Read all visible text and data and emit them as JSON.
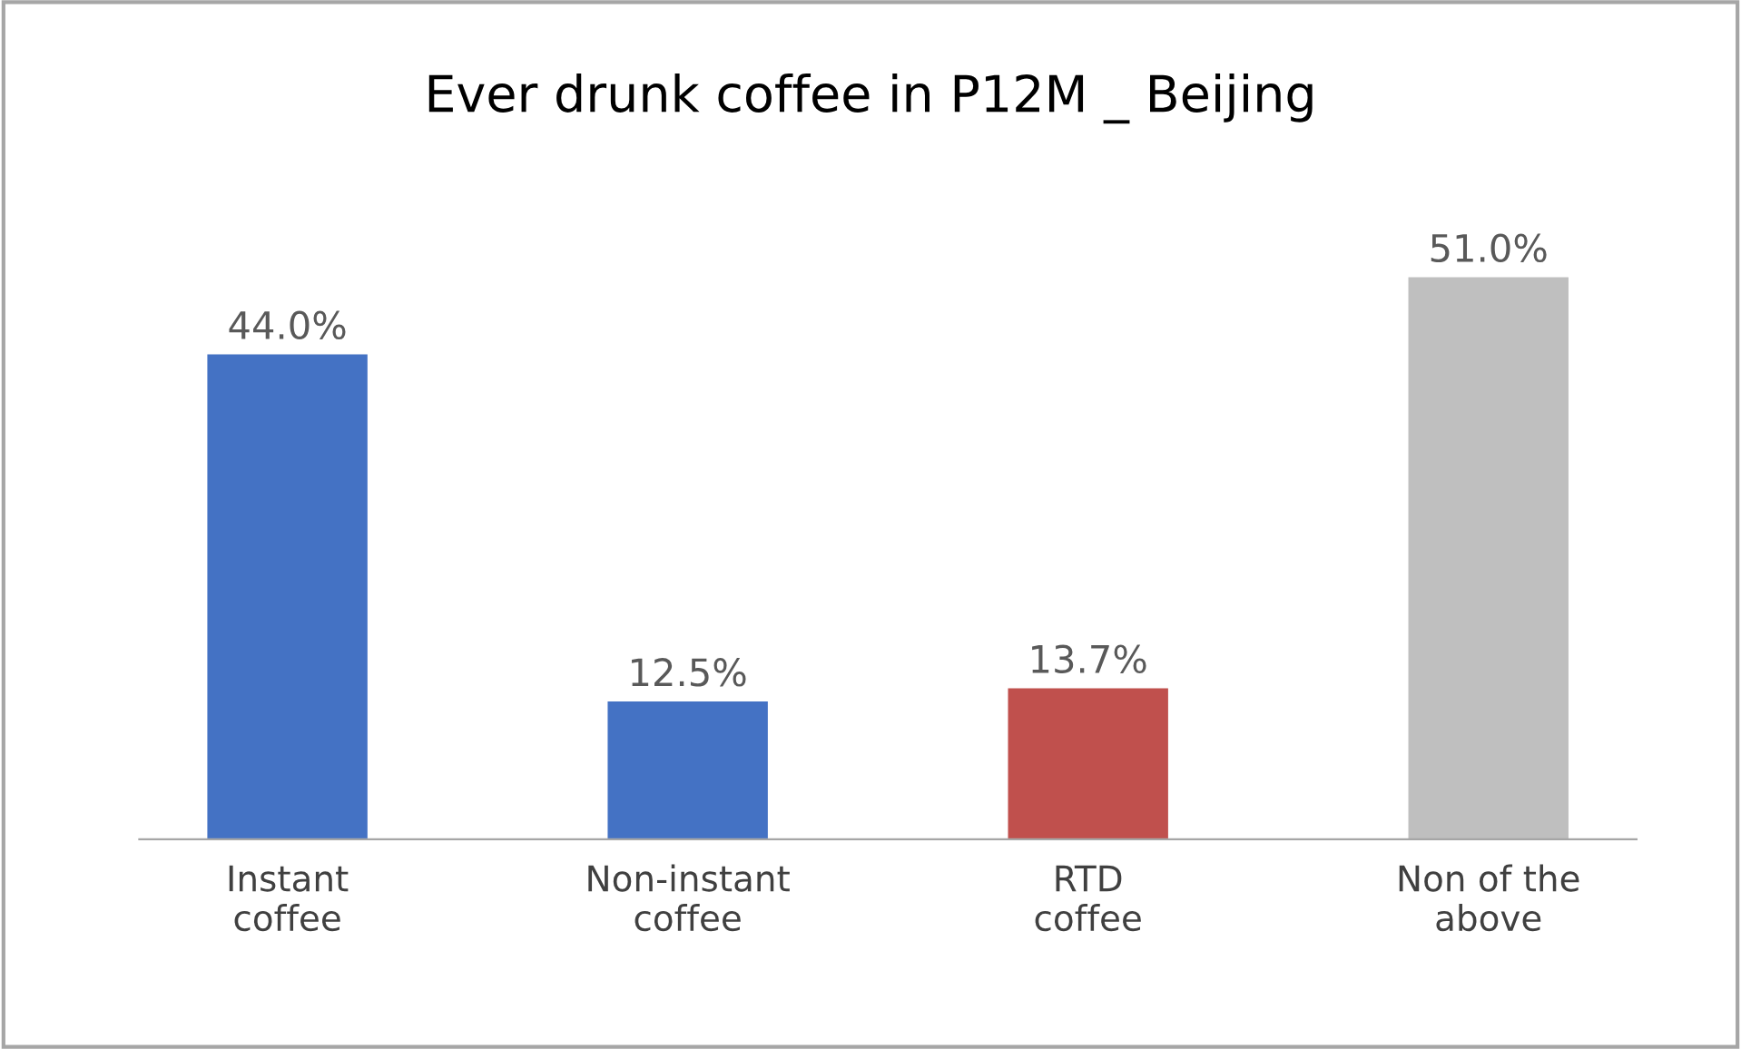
{
  "chart_data": {
    "type": "bar",
    "title": "Ever drunk coffee in P12M _ Beijing",
    "categories": [
      "Instant\ncoffee",
      "Non-instant\ncoffee",
      "RTD\ncoffee",
      "Non of the\nabove"
    ],
    "values": [
      44.0,
      12.5,
      13.7,
      51.0
    ],
    "colors": [
      "#4472c4",
      "#4472c4",
      "#c0504d",
      "#bfbfbf"
    ],
    "value_labels": [
      "44.0%",
      "12.5%",
      "13.7%",
      "51.0%"
    ]
  }
}
